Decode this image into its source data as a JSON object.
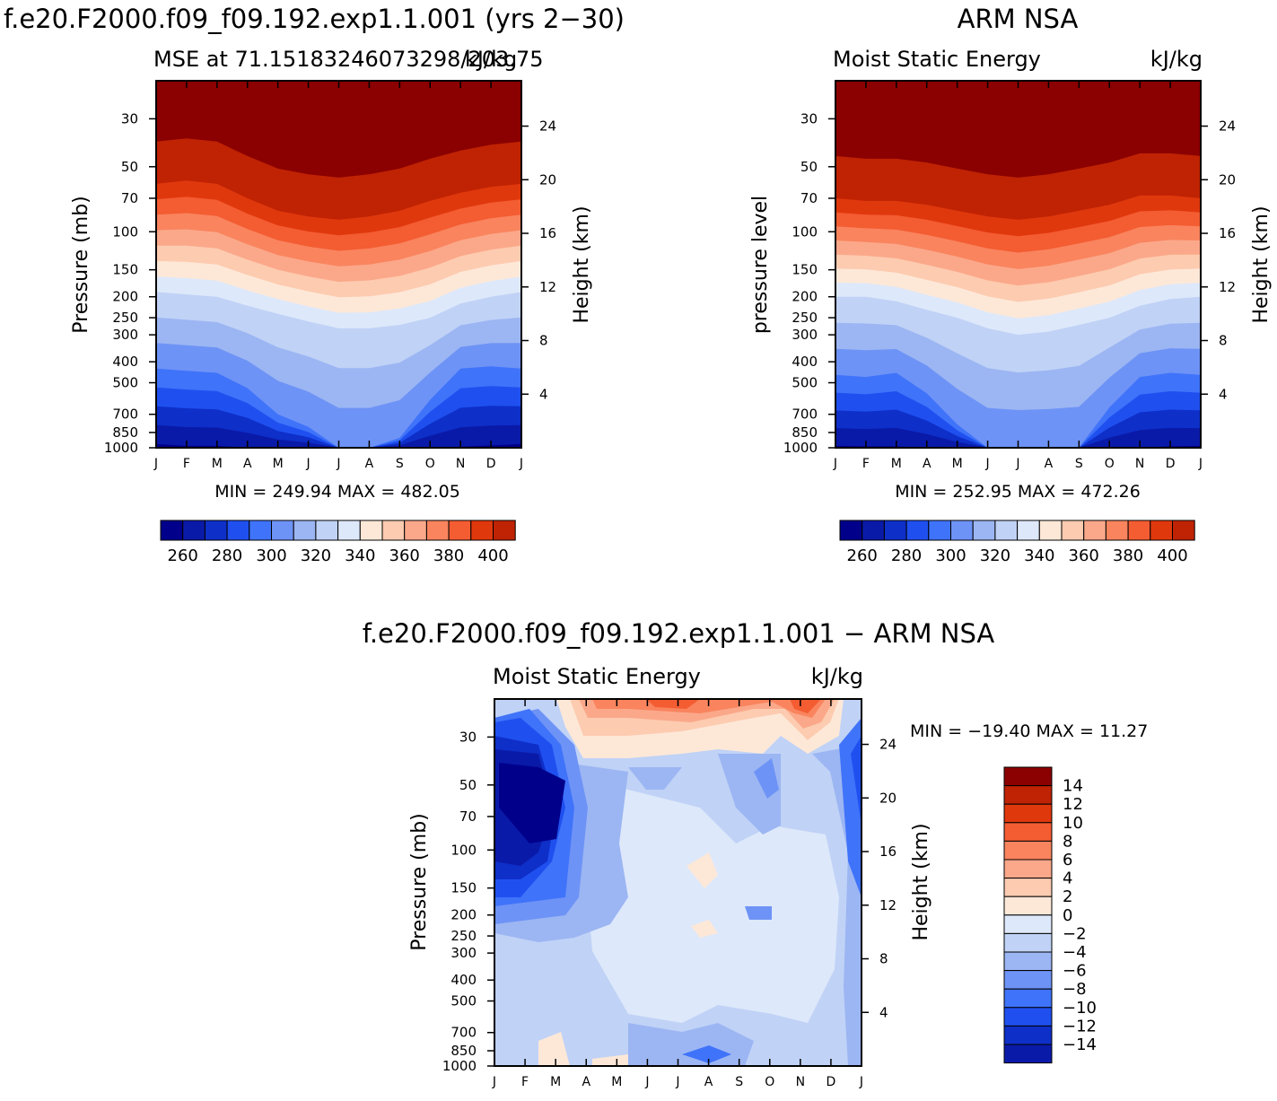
{
  "page_title": "f.e20.F2000.f09_f09.192.exp1.1.001 (yrs 2−30)",
  "chart_data": [
    {
      "type": "heatmap",
      "subtitle_left": "MSE at 71.15183246073298/203.75",
      "subtitle_right": "kJ/kg",
      "ylabel": "Pressure (mb)",
      "ylabel_right": "Height (km)",
      "x_ticks": [
        "J",
        "F",
        "M",
        "A",
        "M",
        "J",
        "J",
        "A",
        "S",
        "O",
        "N",
        "D",
        "J"
      ],
      "pressure_ticks": [
        30,
        50,
        70,
        100,
        150,
        200,
        250,
        300,
        400,
        500,
        700,
        850,
        1000
      ],
      "height_ticks": [
        24,
        20,
        16,
        12,
        8,
        4
      ],
      "minmax": "MIN = 249.94 MAX = 482.05",
      "colorbar_labels": [
        260,
        280,
        300,
        320,
        340,
        360,
        380,
        400
      ],
      "contour_levels": [
        250,
        260,
        270,
        280,
        290,
        300,
        310,
        320,
        330,
        340,
        350,
        360,
        370,
        380,
        390,
        400,
        410
      ],
      "annual_cycle_boundary_levels_hPa": {
        "months": [
          "J",
          "F",
          "M",
          "A",
          "M",
          "J",
          "J",
          "A",
          "S",
          "O",
          "N",
          "D",
          "J"
        ],
        "mse_260": [
          960,
          980,
          980,
          1000,
          1000,
          1000,
          1000,
          1000,
          1000,
          1000,
          990,
          975,
          960
        ],
        "mse_300": [
          430,
          440,
          450,
          530,
          700,
          800,
          1000,
          1000,
          900,
          600,
          430,
          420,
          430
        ],
        "mse_330": [
          190,
          195,
          200,
          220,
          240,
          260,
          280,
          280,
          270,
          250,
          215,
          200,
          190
        ],
        "mse_400": [
          60,
          58,
          60,
          70,
          80,
          85,
          88,
          85,
          80,
          72,
          66,
          62,
          60
        ]
      }
    },
    {
      "type": "heatmap",
      "title": "ARM NSA",
      "subtitle_left": "Moist Static Energy",
      "subtitle_right": "kJ/kg",
      "ylabel": "pressure level",
      "ylabel_right": "Height (km)",
      "x_ticks": [
        "J",
        "F",
        "M",
        "A",
        "M",
        "J",
        "J",
        "A",
        "S",
        "O",
        "N",
        "D",
        "J"
      ],
      "pressure_ticks": [
        30,
        50,
        70,
        100,
        150,
        200,
        250,
        300,
        400,
        500,
        700,
        850,
        1000
      ],
      "height_ticks": [
        24,
        20,
        16,
        12,
        8,
        4
      ],
      "minmax": "MIN = 252.95 MAX = 472.26",
      "colorbar_labels": [
        260,
        280,
        300,
        320,
        340,
        360,
        380,
        400
      ],
      "contour_levels": [
        250,
        260,
        270,
        280,
        290,
        300,
        310,
        320,
        330,
        340,
        350,
        360,
        370,
        380,
        390,
        400,
        410
      ],
      "annual_cycle_boundary_levels_hPa": {
        "months": [
          "J",
          "F",
          "M",
          "A",
          "M",
          "J",
          "J",
          "A",
          "S",
          "O",
          "N",
          "D",
          "J"
        ],
        "mse_260": [
          980,
          985,
          985,
          1000,
          1000,
          1000,
          1000,
          1000,
          1000,
          1000,
          1000,
          985,
          980
        ],
        "mse_300": [
          460,
          470,
          450,
          560,
          780,
          1000,
          1000,
          1000,
          1000,
          650,
          470,
          450,
          460
        ],
        "mse_330": [
          200,
          200,
          210,
          230,
          250,
          280,
          300,
          290,
          270,
          250,
          220,
          205,
          200
        ],
        "mse_400": [
          70,
          72,
          72,
          75,
          80,
          85,
          88,
          85,
          80,
          75,
          68,
          68,
          70
        ]
      }
    },
    {
      "type": "heatmap",
      "title": "f.e20.F2000.f09_f09.192.exp1.1.001 − ARM NSA",
      "subtitle_left": "Moist Static Energy",
      "subtitle_right": "kJ/kg",
      "ylabel": "Pressure (mb)",
      "ylabel_right": "Height (km)",
      "x_ticks": [
        "J",
        "F",
        "M",
        "A",
        "M",
        "J",
        "J",
        "A",
        "S",
        "O",
        "N",
        "D",
        "J"
      ],
      "pressure_ticks": [
        30,
        50,
        70,
        100,
        150,
        200,
        250,
        300,
        400,
        500,
        700,
        850,
        1000
      ],
      "height_ticks": [
        24,
        20,
        16,
        12,
        8,
        4
      ],
      "minmax": "MIN = −19.40 MAX =   11.27",
      "colorbar_labels": [
        "14",
        "12",
        "10",
        "8",
        "6",
        "4",
        "2",
        "0",
        "−2",
        "−4",
        "−6",
        "−8",
        "−10",
        "−12",
        "−14"
      ],
      "contour_levels": [
        -16,
        -14,
        -12,
        -10,
        -8,
        -6,
        -4,
        -2,
        0,
        2,
        4,
        6,
        8,
        10,
        12,
        14,
        16
      ],
      "features": {
        "upper_level_positive_max": 11.27,
        "cold_core_winter_min": -19.4,
        "mid_troposphere_typical": -4
      }
    }
  ],
  "colors": {
    "scale": [
      "#00008b",
      "#0a1aa8",
      "#0e2fc8",
      "#1f50ef",
      "#3f73fa",
      "#6e93f6",
      "#9cb6f3",
      "#c0d2f6",
      "#dde8fa",
      "#fde8d8",
      "#fdcbb0",
      "#fba88a",
      "#f9845e",
      "#f45c32",
      "#e0380d",
      "#bf2303",
      "#8b0000"
    ]
  }
}
